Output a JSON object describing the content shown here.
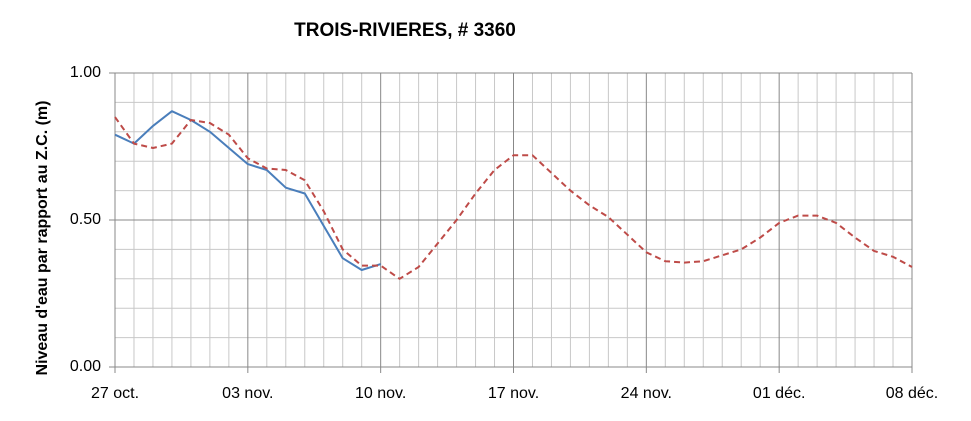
{
  "chart_data": {
    "type": "line",
    "title": "TROIS-RIVIERES, # 3360",
    "y_label": "Niveau d'eau par rapport au Z.C. (m)",
    "categories": [
      "27 oct.",
      null,
      null,
      null,
      null,
      null,
      null,
      "03 nov.",
      null,
      null,
      null,
      null,
      null,
      null,
      "10 nov.",
      null,
      null,
      null,
      null,
      null,
      null,
      "17 nov.",
      null,
      null,
      null,
      null,
      null,
      null,
      "24 nov.",
      null,
      null,
      null,
      null,
      null,
      null,
      "01 déc.",
      null,
      null,
      null,
      null,
      null,
      null,
      "08 déc."
    ],
    "series": [
      {
        "color": "#4a7ebb",
        "dash": false,
        "values": [
          0.79,
          0.76,
          0.82,
          0.87,
          0.84,
          0.8,
          0.745,
          0.69,
          0.67,
          0.61,
          0.59,
          0.48,
          0.37,
          0.33,
          0.35,
          null,
          null,
          null,
          null,
          null,
          null,
          null,
          null,
          null,
          null,
          null,
          null,
          null,
          null,
          null,
          null,
          null,
          null,
          null,
          null,
          null,
          null,
          null,
          null,
          null,
          null,
          null,
          null
        ]
      },
      {
        "color": "#be4b48",
        "dash": true,
        "values": [
          0.85,
          0.76,
          0.745,
          0.76,
          0.84,
          0.83,
          0.79,
          0.71,
          0.675,
          0.67,
          0.635,
          0.53,
          0.4,
          0.345,
          0.345,
          0.3,
          0.34,
          0.42,
          0.5,
          0.59,
          0.67,
          0.72,
          0.72,
          0.66,
          0.6,
          0.55,
          0.51,
          0.45,
          0.39,
          0.36,
          0.355,
          0.36,
          0.38,
          0.4,
          0.44,
          0.49,
          0.515,
          0.515,
          0.49,
          0.44,
          0.395,
          0.375,
          0.34
        ]
      }
    ],
    "ylim": [
      0,
      1
    ],
    "yticks": [
      {
        "value": 0,
        "label": "0.00"
      },
      {
        "value": 0.5,
        "label": "0.50"
      },
      {
        "value": 1,
        "label": "1.00"
      }
    ],
    "grid": true
  }
}
